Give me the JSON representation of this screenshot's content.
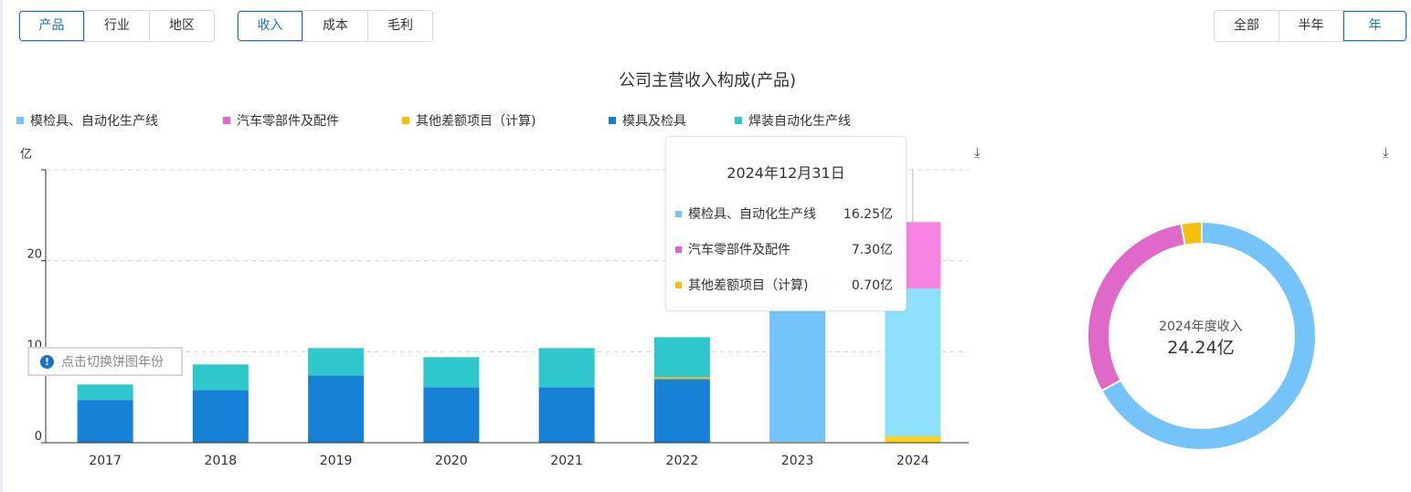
{
  "controls": {
    "dimension_tabs": [
      "产品",
      "行业",
      "地区"
    ],
    "dimension_active": 0,
    "metric_tabs": [
      "收入",
      "成本",
      "毛利"
    ],
    "metric_active": 0,
    "range_tabs": [
      "全部",
      "半年",
      "年"
    ],
    "range_active": 2
  },
  "download_icon": "download-icon",
  "switch_tip": "点击切换饼图年份",
  "tooltip": {
    "date": "2024年12月31日",
    "rows": [
      {
        "name": "模检具、自动化生产线",
        "value": "16.25亿",
        "color": "#74c3fb"
      },
      {
        "name": "汽车零部件及配件",
        "value": "7.30亿",
        "color": "#e060c8"
      },
      {
        "name": "其他差额项目（计算)",
        "value": "0.70亿",
        "color": "#f5bf0a"
      }
    ]
  },
  "donut": {
    "label": "2024年度收入",
    "value": "24.24亿",
    "segments": [
      {
        "name": "模检具、自动化生产线",
        "value": 16.25,
        "color": "#74c3fb"
      },
      {
        "name": "汽车零部件及配件",
        "value": 7.3,
        "color": "#e068c8"
      },
      {
        "name": "其他差额项目（计算)",
        "value": 0.7,
        "color": "#f5bf0a"
      }
    ]
  },
  "chart_data": {
    "type": "bar",
    "stacked": true,
    "title": "公司主营收入构成(产品)",
    "ylabel": "亿",
    "ylim": [
      0,
      30
    ],
    "yticks": [
      0,
      10,
      20
    ],
    "grid": true,
    "legend_position": "top-left",
    "categories": [
      "2017",
      "2018",
      "2019",
      "2020",
      "2021",
      "2022",
      "2023",
      "2024"
    ],
    "series": [
      {
        "name": "模检具、自动化生产线",
        "color": "#74c3fb",
        "values": [
          0,
          0,
          0,
          0,
          0,
          0,
          14.9,
          16.25
        ]
      },
      {
        "name": "汽车零部件及配件",
        "color": "#e066cc",
        "values": [
          0,
          0,
          0,
          0,
          0,
          0,
          3.5,
          7.3
        ]
      },
      {
        "name": "其他差额项目（计算)",
        "color": "#f5bf0a",
        "values": [
          0,
          0,
          0,
          0,
          0,
          0.2,
          0.1,
          0.7
        ]
      },
      {
        "name": "模具及检具",
        "color": "#1681d6",
        "values": [
          4.7,
          5.8,
          7.4,
          6.1,
          6.1,
          7.0,
          0,
          0
        ]
      },
      {
        "name": "焊装自动化生产线",
        "color": "#2ec8cc",
        "values": [
          1.7,
          2.8,
          3.0,
          3.3,
          4.3,
          4.4,
          0,
          0
        ]
      }
    ],
    "highlighted_category": "2024"
  }
}
